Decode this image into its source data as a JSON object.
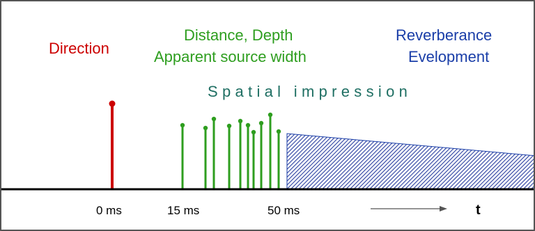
{
  "labels": {
    "direction": "Direction",
    "distance_line1": "Distance, Depth",
    "distance_line2": "Apparent source width",
    "reverb_line1": "Reverberance",
    "reverb_line2": "Evelopment",
    "spatial": "Spatial impression"
  },
  "axis": {
    "ticks": [
      "0 ms",
      "15 ms",
      "50 ms"
    ],
    "time_symbol": "t"
  },
  "colors": {
    "direct": "#cc0000",
    "early": "#2e9e1f",
    "late": "#1a3ea8",
    "spatial": "#1f6f63"
  }
}
